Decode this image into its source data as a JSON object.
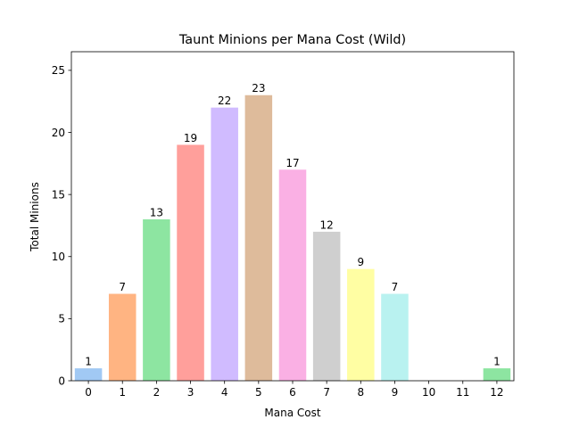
{
  "chart_data": {
    "type": "bar",
    "title": "Taunt Minions per Mana Cost (Wild)",
    "xlabel": "Mana Cost",
    "ylabel": "Total Minions",
    "categories": [
      "0",
      "1",
      "2",
      "3",
      "4",
      "5",
      "6",
      "7",
      "8",
      "9",
      "10",
      "11",
      "12"
    ],
    "values": [
      1,
      7,
      13,
      19,
      22,
      23,
      17,
      12,
      9,
      7,
      0,
      0,
      1
    ],
    "data_labels": [
      "1",
      "7",
      "13",
      "19",
      "22",
      "23",
      "17",
      "12",
      "9",
      "7",
      "",
      "",
      "1"
    ],
    "colors": [
      "#a1c9f4",
      "#ffb482",
      "#8de5a1",
      "#ff9f9b",
      "#d0bbff",
      "#debb9b",
      "#fab0e4",
      "#cfcfcf",
      "#fffea3",
      "#b9f2f0",
      "#a1c9f4",
      "#ffb482",
      "#8de5a1"
    ],
    "ylim": [
      0,
      26.5
    ],
    "yticks": [
      0,
      5,
      10,
      15,
      20,
      25
    ],
    "grid": false,
    "legend": "none"
  }
}
